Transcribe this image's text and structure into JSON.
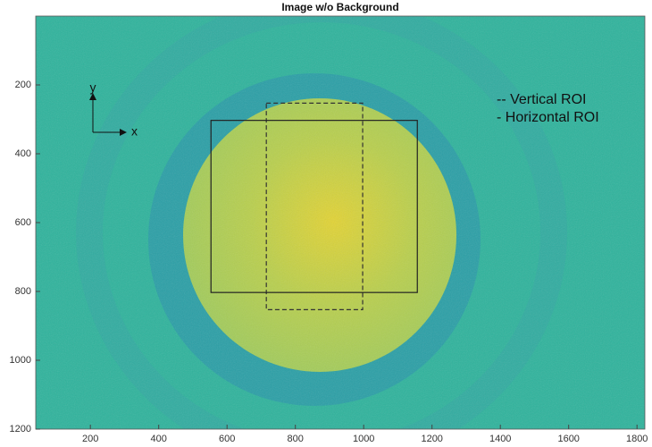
{
  "chart_data": {
    "type": "image",
    "title": "Image w/o Background",
    "xlim": [
      40,
      1823
    ],
    "ylim": [
      0,
      1200
    ],
    "xticks": [
      200,
      400,
      600,
      800,
      1000,
      1200,
      1400,
      1600,
      1800
    ],
    "yticks": [
      200,
      400,
      600,
      800,
      1000,
      1200
    ],
    "y_reversed": true,
    "rois": [
      {
        "name": "-- Vertical ROI",
        "x": [
          715,
          997
        ],
        "y": [
          253,
          853
        ],
        "dashed": true,
        "color": "#333333"
      },
      {
        "name": "-  Horizontal ROI",
        "x": [
          553,
          1157
        ],
        "y": [
          303,
          803
        ],
        "dashed": false,
        "color": "#222222"
      }
    ],
    "annotations": [
      "y",
      "x"
    ]
  }
}
